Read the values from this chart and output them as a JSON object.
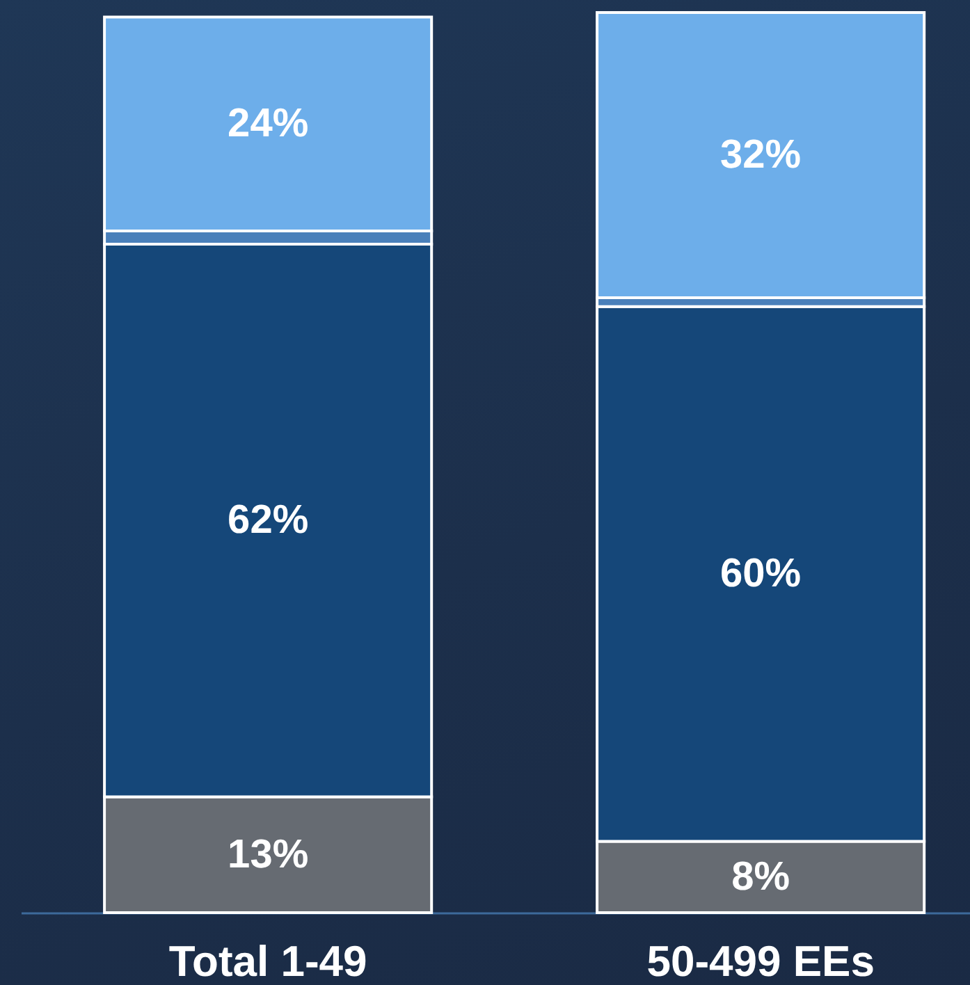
{
  "chart_data": {
    "type": "bar",
    "stacked": true,
    "categories": [
      "Total 1-49",
      "50-499 EEs"
    ],
    "series": [
      {
        "color": "#666b72",
        "values": [
          13,
          8
        ],
        "value_labels": [
          "13%",
          "8%"
        ]
      },
      {
        "color": "#154779",
        "values": [
          62,
          60
        ],
        "value_labels": [
          "62%",
          "60%"
        ]
      },
      {
        "color": "#4a80ba",
        "values": [
          1.5,
          1
        ]
      },
      {
        "color": "#6daeea",
        "values": [
          24,
          32
        ],
        "value_labels": [
          "24%",
          "32%"
        ]
      }
    ]
  }
}
